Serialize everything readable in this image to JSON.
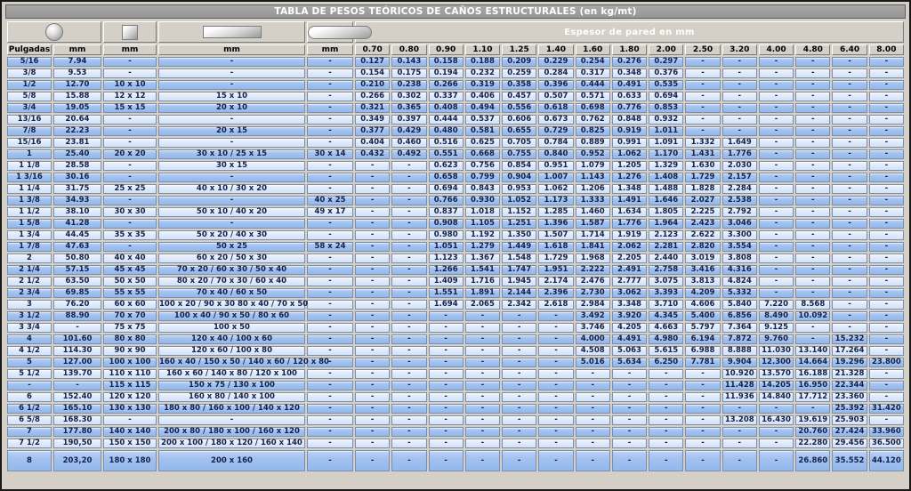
{
  "title": "TABLA DE PESOS TEÓRICOS DE CAÑOS ESTRUCTURALES (en kg/mt)",
  "header": {
    "shape_icons": [
      "round-tube-icon",
      "square-tube-icon",
      "rectangular-tube-icon",
      "oval-tube-icon"
    ],
    "espesor_label": "Espesor de pared en mm",
    "column_headers": [
      "Pulgadas",
      "mm",
      "mm",
      "mm",
      "mm"
    ],
    "thickness_headers": [
      "0.70",
      "0.80",
      "0.90",
      "1.10",
      "1.25",
      "1.40",
      "1.60",
      "1.80",
      "2.00",
      "2.50",
      "3.20",
      "4.00",
      "4.80",
      "6.40",
      "8.00"
    ]
  },
  "colors": {
    "row_dark": "#9db9ed",
    "row_light": "#dbe7f9",
    "chrome_gray": "#d4d0c8",
    "title_gray": "#9c9c9c",
    "text_navy": "#14204a"
  },
  "rows": [
    [
      "5/16",
      "7.94",
      "-",
      "-",
      "-",
      "0.127",
      "0.143",
      "0.158",
      "0.188",
      "0.209",
      "0.229",
      "0.254",
      "0.276",
      "0.297",
      "-",
      "-",
      "-",
      "-",
      "-",
      "-"
    ],
    [
      "3/8",
      "9.53",
      "-",
      "-",
      "-",
      "0.154",
      "0.175",
      "0.194",
      "0.232",
      "0.259",
      "0.284",
      "0.317",
      "0.348",
      "0.376",
      "-",
      "-",
      "-",
      "-",
      "-",
      "-"
    ],
    [
      "1/2",
      "12.70",
      "10 x 10",
      "-",
      "-",
      "0.210",
      "0.238",
      "0.266",
      "0.319",
      "0.358",
      "0.396",
      "0.444",
      "0.491",
      "0.535",
      "-",
      "-",
      "-",
      "-",
      "-",
      "-"
    ],
    [
      "5/8",
      "15.88",
      "12 x 12",
      "15 x 10",
      "-",
      "0.266",
      "0.302",
      "0.337",
      "0.406",
      "0.457",
      "0.507",
      "0.571",
      "0.633",
      "0.694",
      "-",
      "-",
      "-",
      "-",
      "-",
      "-"
    ],
    [
      "3/4",
      "19.05",
      "15 x 15",
      "20 x 10",
      "-",
      "0.321",
      "0.365",
      "0.408",
      "0.494",
      "0.556",
      "0.618",
      "0.698",
      "0.776",
      "0.853",
      "-",
      "-",
      "-",
      "-",
      "-",
      "-"
    ],
    [
      "13/16",
      "20.64",
      "-",
      "-",
      "-",
      "0.349",
      "0.397",
      "0.444",
      "0.537",
      "0.606",
      "0.673",
      "0.762",
      "0.848",
      "0.932",
      "-",
      "-",
      "-",
      "-",
      "-",
      "-"
    ],
    [
      "7/8",
      "22.23",
      "-",
      "20 x 15",
      "-",
      "0.377",
      "0.429",
      "0.480",
      "0.581",
      "0.655",
      "0.729",
      "0.825",
      "0.919",
      "1.011",
      "-",
      "-",
      "-",
      "-",
      "-",
      "-"
    ],
    [
      "15/16",
      "23.81",
      "-",
      "-",
      "-",
      "0.404",
      "0.460",
      "0.516",
      "0.625",
      "0.705",
      "0.784",
      "0.889",
      "0.991",
      "1.091",
      "1.332",
      "1.649",
      "-",
      "-",
      "-",
      "-"
    ],
    [
      "1",
      "25.40",
      "20 x 20",
      "30 x 10 / 25 x 15",
      "30 x 14",
      "0.432",
      "0.492",
      "0.551",
      "0.668",
      "0.755",
      "0.840",
      "0.952",
      "1.062",
      "1.170",
      "1.431",
      "1.776",
      "-",
      "-",
      "-",
      "-"
    ],
    [
      "1 1/8",
      "28.58",
      "-",
      "30 x 15",
      "-",
      "-",
      "-",
      "0.623",
      "0.756",
      "0.854",
      "0.951",
      "1.079",
      "1.205",
      "1.329",
      "1.630",
      "2.030",
      "-",
      "-",
      "-",
      "-"
    ],
    [
      "1 3/16",
      "30.16",
      "-",
      "-",
      "-",
      "-",
      "-",
      "0.658",
      "0.799",
      "0.904",
      "1.007",
      "1.143",
      "1.276",
      "1.408",
      "1.729",
      "2.157",
      "-",
      "-",
      "-",
      "-"
    ],
    [
      "1 1/4",
      "31.75",
      "25 x 25",
      "40 x 10 / 30 x 20",
      "-",
      "-",
      "-",
      "0.694",
      "0.843",
      "0.953",
      "1.062",
      "1.206",
      "1.348",
      "1.488",
      "1.828",
      "2.284",
      "-",
      "-",
      "-",
      "-"
    ],
    [
      "1 3/8",
      "34.93",
      "-",
      "-",
      "40 x 25",
      "-",
      "-",
      "0.766",
      "0.930",
      "1.052",
      "1.173",
      "1.333",
      "1.491",
      "1.646",
      "2.027",
      "2.538",
      "-",
      "-",
      "-",
      "-"
    ],
    [
      "1 1/2",
      "38.10",
      "30 x 30",
      "50 x 10 / 40 x 20",
      "49 x 17",
      "-",
      "-",
      "0.837",
      "1.018",
      "1.152",
      "1.285",
      "1.460",
      "1.634",
      "1.805",
      "2.225",
      "2.792",
      "-",
      "-",
      "-",
      "-"
    ],
    [
      "1 5/8",
      "41.28",
      "-",
      "-",
      "-",
      "-",
      "-",
      "0.908",
      "1.105",
      "1.251",
      "1.396",
      "1.587",
      "1.776",
      "1.964",
      "2.423",
      "3.046",
      "-",
      "-",
      "-",
      "-"
    ],
    [
      "1 3/4",
      "44.45",
      "35 x 35",
      "50 x 20 / 40 x 30",
      "-",
      "-",
      "-",
      "0.980",
      "1.192",
      "1.350",
      "1.507",
      "1.714",
      "1.919",
      "2.123",
      "2.622",
      "3.300",
      "-",
      "-",
      "-",
      "-"
    ],
    [
      "1 7/8",
      "47.63",
      "-",
      "50 x 25",
      "58 x 24",
      "-",
      "-",
      "1.051",
      "1.279",
      "1.449",
      "1.618",
      "1.841",
      "2.062",
      "2.281",
      "2.820",
      "3.554",
      "-",
      "-",
      "-",
      "-"
    ],
    [
      "2",
      "50.80",
      "40 x 40",
      "60 x 20 / 50 x 30",
      "-",
      "-",
      "-",
      "1.123",
      "1.367",
      "1.548",
      "1.729",
      "1.968",
      "2.205",
      "2.440",
      "3.019",
      "3.808",
      "-",
      "-",
      "-",
      "-"
    ],
    [
      "2 1/4",
      "57.15",
      "45 x 45",
      "70 x 20 / 60 x 30 / 50 x 40",
      "-",
      "-",
      "-",
      "1.266",
      "1.541",
      "1.747",
      "1.951",
      "2.222",
      "2.491",
      "2.758",
      "3.416",
      "4.316",
      "-",
      "-",
      "-",
      "-"
    ],
    [
      "2 1/2",
      "63.50",
      "50 x 50",
      "80 x 20 / 70 x 30 / 60 x 40",
      "-",
      "-",
      "-",
      "1.409",
      "1.716",
      "1.945",
      "2.174",
      "2.476",
      "2.777",
      "3.075",
      "3.813",
      "4.824",
      "-",
      "-",
      "-",
      "-"
    ],
    [
      "2 3/4",
      "69.85",
      "55 x 55",
      "70 x 40 / 60 x 50",
      "-",
      "-",
      "-",
      "1.551",
      "1.891",
      "2.144",
      "2.396",
      "2.730",
      "3.062",
      "3.393",
      "4.209",
      "5.332",
      "-",
      "-",
      "-",
      "-"
    ],
    [
      "3",
      "76.20",
      "60 x 60",
      "100 x 20 / 90 x 30 80 x 40 / 70 x 50",
      "-",
      "-",
      "-",
      "1.694",
      "2.065",
      "2.342",
      "2.618",
      "2.984",
      "3.348",
      "3.710",
      "4.606",
      "5.840",
      "7.220",
      "8.568",
      "-",
      "-"
    ],
    [
      "3 1/2",
      "88.90",
      "70 x 70",
      "100 x 40 / 90 x 50 / 80 x 60",
      "-",
      "-",
      "-",
      "-",
      "-",
      "-",
      "-",
      "3.492",
      "3.920",
      "4.345",
      "5.400",
      "6.856",
      "8.490",
      "10.092",
      "-",
      "-"
    ],
    [
      "3 3/4",
      "-",
      "75 x 75",
      "100 x 50",
      "-",
      "-",
      "-",
      "-",
      "-",
      "-",
      "-",
      "3.746",
      "4.205",
      "4.663",
      "5.797",
      "7.364",
      "9.125",
      "-",
      "-",
      "-"
    ],
    [
      "4",
      "101.60",
      "80 x 80",
      "120 x 40 / 100 x 60",
      "-",
      "-",
      "-",
      "-",
      "-",
      "-",
      "-",
      "4.000",
      "4.491",
      "4.980",
      "6.194",
      "7.872",
      "9.760",
      "-",
      "15.232",
      "-"
    ],
    [
      "4 1/2",
      "114.30",
      "90 x 90",
      "120 x 60 / 100 x 80",
      "-",
      "-",
      "-",
      "-",
      "-",
      "-",
      "-",
      "4.508",
      "5.063",
      "5.615",
      "6.988",
      "8.888",
      "11.030",
      "13.140",
      "17.264",
      "-"
    ],
    [
      "5",
      "127.00",
      "100 x 100",
      "160 x 40 / 150 x 50 / 140 x 60 / 120 x 80",
      "-",
      "-",
      "-",
      "-",
      "-",
      "-",
      "-",
      "5.016",
      "5.634",
      "6.250",
      "7.781",
      "9.904",
      "12.300",
      "14.664",
      "19.296",
      "23.800"
    ],
    [
      "5 1/2",
      "139.70",
      "110 x 110",
      "160 x 60 / 140 x 80 / 120 x 100",
      "-",
      "-",
      "-",
      "-",
      "-",
      "-",
      "-",
      "-",
      "-",
      "-",
      "-",
      "10.920",
      "13.570",
      "16.188",
      "21.328",
      "-"
    ],
    [
      "-",
      "-",
      "115 x 115",
      "150 x 75 / 130 x 100",
      "-",
      "-",
      "-",
      "-",
      "-",
      "-",
      "-",
      "-",
      "-",
      "-",
      "-",
      "11.428",
      "14.205",
      "16.950",
      "22.344",
      "-"
    ],
    [
      "6",
      "152.40",
      "120 x 120",
      "160 x 80 / 140 x 100",
      "-",
      "-",
      "-",
      "-",
      "-",
      "-",
      "-",
      "-",
      "-",
      "-",
      "-",
      "11.936",
      "14.840",
      "17.712",
      "23.360",
      "-"
    ],
    [
      "6 1/2",
      "165.10",
      "130 x 130",
      "180 x 80 / 160 x 100 / 140 x 120",
      "-",
      "-",
      "-",
      "-",
      "-",
      "-",
      "-",
      "-",
      "-",
      "-",
      "-",
      "-",
      "-",
      "-",
      "25.392",
      "31.420"
    ],
    [
      "6 5/8",
      "168.30",
      "-",
      "-",
      "-",
      "-",
      "-",
      "-",
      "-",
      "-",
      "-",
      "-",
      "-",
      "-",
      "-",
      "13.208",
      "16.430",
      "19.619",
      "25.903",
      "-"
    ],
    [
      "7",
      "177.80",
      "140 x 140",
      "200 x 80 / 180 x 100 / 160 x 120",
      "-",
      "-",
      "-",
      "-",
      "-",
      "-",
      "-",
      "-",
      "-",
      "-",
      "-",
      "-",
      "-",
      "20.760",
      "27.424",
      "33.960"
    ],
    [
      "7 1/2",
      "190,50",
      "150 x 150",
      "200 x 100 / 180 x 120 / 160 x 140",
      "-",
      "-",
      "-",
      "-",
      "-",
      "-",
      "-",
      "-",
      "-",
      "-",
      "-",
      "-",
      "-",
      "22.280",
      "29.456",
      "36.500"
    ],
    [
      "8",
      "203,20",
      "180 x 180",
      "200 x 160",
      "-",
      "-",
      "-",
      "-",
      "-",
      "-",
      "-",
      "-",
      "-",
      "-",
      "-",
      "-",
      "-",
      "26.860",
      "35.552",
      "44.120"
    ]
  ]
}
